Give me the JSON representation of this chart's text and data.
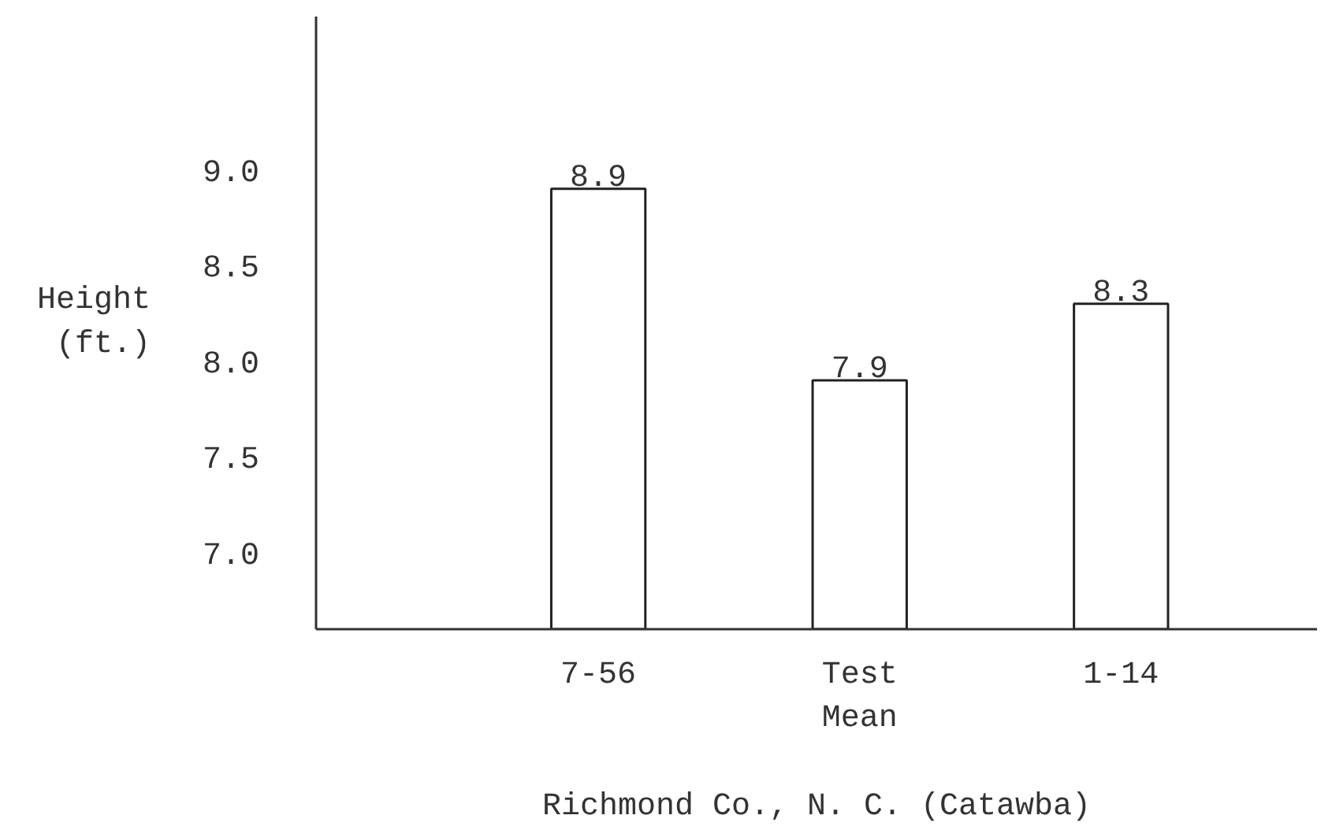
{
  "chart_data": {
    "type": "bar",
    "xlabel": "Richmond Co., N. C. (Catawba)",
    "ylabel": "Height\n(ft.)",
    "categories": [
      "7-56",
      "Test\nMean",
      "1-14"
    ],
    "values": [
      8.9,
      7.9,
      8.3
    ],
    "color": "#ffffff",
    "ylim": [
      6.6,
      9.8
    ],
    "yticks": [
      {
        "value": 7,
        "label": "7.0"
      },
      {
        "value": 7.5,
        "label": "7.5"
      },
      {
        "value": 8,
        "label": "8.0"
      },
      {
        "value": 8.5,
        "label": "8.5"
      },
      {
        "value": 9,
        "label": "9.0"
      }
    ],
    "data_labels": true
  }
}
